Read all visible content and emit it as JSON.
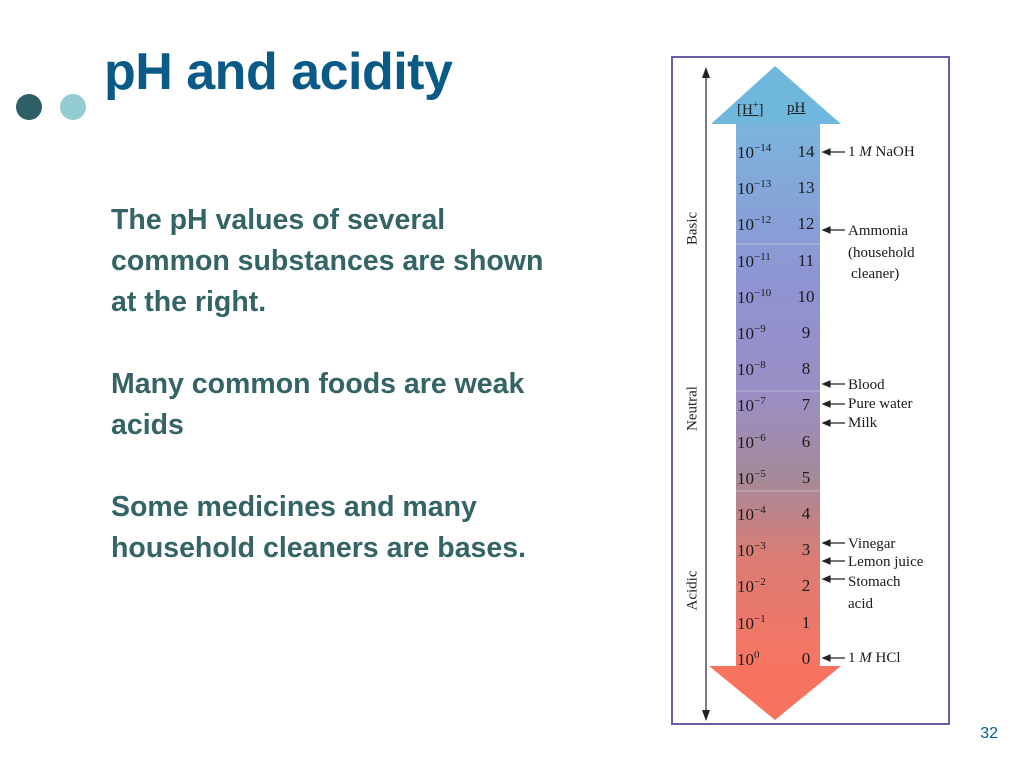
{
  "title": "pH and acidity",
  "body": {
    "paragraph_1": "The pH values of several common substances are shown at the right.",
    "paragraph_2": "Many common foods are weak acids",
    "paragraph_3": "Some medicines and many household cleaners are bases."
  },
  "slide_number": "32",
  "figure": {
    "headers": {
      "h_base": "[H",
      "h_sup": "+",
      "h_close": "]",
      "ph": "pH"
    },
    "regions": {
      "basic": "Basic",
      "neutral": "Neutral",
      "acidic": "Acidic"
    },
    "scale": [
      {
        "base": "10",
        "exp": "−14",
        "ph": "14"
      },
      {
        "base": "10",
        "exp": "−13",
        "ph": "13"
      },
      {
        "base": "10",
        "exp": "−12",
        "ph": "12"
      },
      {
        "base": "10",
        "exp": "−11",
        "ph": "11"
      },
      {
        "base": "10",
        "exp": "−10",
        "ph": "10"
      },
      {
        "base": "10",
        "exp": "−9",
        "ph": "9"
      },
      {
        "base": "10",
        "exp": "−8",
        "ph": "8"
      },
      {
        "base": "10",
        "exp": "−7",
        "ph": "7"
      },
      {
        "base": "10",
        "exp": "−6",
        "ph": "6"
      },
      {
        "base": "10",
        "exp": "−5",
        "ph": "5"
      },
      {
        "base": "10",
        "exp": "−4",
        "ph": "4"
      },
      {
        "base": "10",
        "exp": "−3",
        "ph": "3"
      },
      {
        "base": "10",
        "exp": "−2",
        "ph": "2"
      },
      {
        "base": "10",
        "exp": "−1",
        "ph": "1"
      },
      {
        "base": "10",
        "exp": "0",
        "ph": "0"
      }
    ],
    "substances": {
      "naoh": {
        "pre": "1 ",
        "m": "M",
        "post": " NaOH"
      },
      "ammonia_1": "Ammonia",
      "ammonia_2": "(household",
      "ammonia_3": "cleaner)",
      "blood": "Blood",
      "pure_water": "Pure water",
      "milk": "Milk",
      "vinegar": "Vinegar",
      "lemon_juice": "Lemon juice",
      "stomach_1": "Stomach",
      "stomach_2": "acid",
      "hcl": {
        "pre": "1 ",
        "m": "M",
        "post": " HCl"
      }
    },
    "colors": {
      "frame": "#6c5aa5",
      "top_arrow": "#6fb7dc",
      "gradient_top": "#7cb4de",
      "gradient_mid": "#9a8ec4",
      "gradient_bottom": "#f77562",
      "bottom_arrow": "#f8735f"
    }
  }
}
